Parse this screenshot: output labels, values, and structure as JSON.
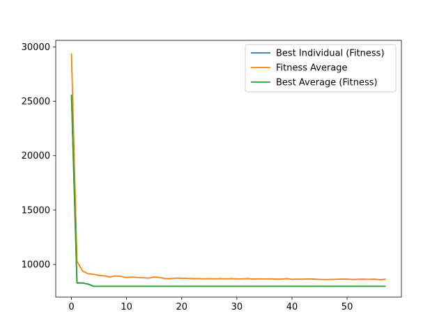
{
  "chart_data": {
    "type": "line",
    "title": "",
    "xlabel": "",
    "ylabel": "",
    "xlim": [
      -2.85,
      59.85
    ],
    "ylim": [
      7000,
      30600
    ],
    "xticks": [
      0,
      10,
      20,
      30,
      40,
      50
    ],
    "yticks": [
      10000,
      15000,
      20000,
      25000,
      30000
    ],
    "grid": false,
    "legend": "top-right",
    "series": [
      {
        "name": "Best Individual (Fitness)",
        "color": "#1f77b4",
        "x": [
          0,
          1,
          2,
          3,
          4,
          5,
          6,
          7,
          8,
          9,
          10,
          11,
          12,
          13,
          14,
          15,
          16,
          17,
          18,
          19,
          20,
          21,
          22,
          23,
          24,
          25,
          26,
          27,
          28,
          29,
          30,
          31,
          32,
          33,
          34,
          35,
          36,
          37,
          38,
          39,
          40,
          41,
          42,
          43,
          44,
          45,
          46,
          47,
          48,
          49,
          50,
          51,
          52,
          53,
          54,
          55,
          56,
          57
        ],
        "values": [
          25600,
          8300,
          8300,
          8200,
          8000,
          8000,
          8000,
          8000,
          8000,
          8000,
          8000,
          8000,
          8000,
          8000,
          8000,
          8000,
          8000,
          8000,
          8000,
          8000,
          8000,
          8000,
          8000,
          8000,
          8000,
          8000,
          8000,
          8000,
          8000,
          8000,
          8000,
          8000,
          8000,
          8000,
          8000,
          8000,
          8000,
          8000,
          8000,
          8000,
          8000,
          8000,
          8000,
          8000,
          8000,
          8000,
          8000,
          8000,
          8000,
          8000,
          8000,
          8000,
          8000,
          8000,
          8000,
          8000,
          8000,
          8000
        ]
      },
      {
        "name": "Fitness Average",
        "color": "#ff7f0e",
        "x": [
          0,
          1,
          2,
          3,
          4,
          5,
          6,
          7,
          8,
          9,
          10,
          11,
          12,
          13,
          14,
          15,
          16,
          17,
          18,
          19,
          20,
          21,
          22,
          23,
          24,
          25,
          26,
          27,
          28,
          29,
          30,
          31,
          32,
          33,
          34,
          35,
          36,
          37,
          38,
          39,
          40,
          41,
          42,
          43,
          44,
          45,
          46,
          47,
          48,
          49,
          50,
          51,
          52,
          53,
          54,
          55,
          56,
          57
        ],
        "values": [
          29400,
          10300,
          9400,
          9150,
          9100,
          9000,
          8950,
          8850,
          8950,
          8900,
          8800,
          8850,
          8800,
          8780,
          8750,
          8850,
          8800,
          8700,
          8700,
          8750,
          8730,
          8720,
          8700,
          8700,
          8680,
          8700,
          8680,
          8700,
          8680,
          8700,
          8670,
          8680,
          8700,
          8660,
          8680,
          8670,
          8680,
          8650,
          8650,
          8700,
          8640,
          8650,
          8650,
          8670,
          8660,
          8630,
          8620,
          8630,
          8640,
          8660,
          8660,
          8620,
          8640,
          8650,
          8640,
          8650,
          8600,
          8650
        ]
      },
      {
        "name": "Best Average (Fitness)",
        "color": "#2ca02c",
        "x": [
          0,
          1,
          2,
          3,
          4,
          5,
          6,
          7,
          8,
          9,
          10,
          11,
          12,
          13,
          14,
          15,
          16,
          17,
          18,
          19,
          20,
          21,
          22,
          23,
          24,
          25,
          26,
          27,
          28,
          29,
          30,
          31,
          32,
          33,
          34,
          35,
          36,
          37,
          38,
          39,
          40,
          41,
          42,
          43,
          44,
          45,
          46,
          47,
          48,
          49,
          50,
          51,
          52,
          53,
          54,
          55,
          56,
          57
        ],
        "values": [
          25600,
          8300,
          8300,
          8200,
          8000,
          8000,
          8000,
          8000,
          8000,
          8000,
          8000,
          8000,
          8000,
          8000,
          8000,
          8000,
          8000,
          8000,
          8000,
          8000,
          8000,
          8000,
          8000,
          8000,
          8000,
          8000,
          8000,
          8000,
          8000,
          8000,
          8000,
          8000,
          8000,
          8000,
          8000,
          8000,
          8000,
          8000,
          8000,
          8000,
          8000,
          8000,
          8000,
          8000,
          8000,
          8000,
          8000,
          8000,
          8000,
          8000,
          8000,
          8000,
          8000,
          8000,
          8000,
          8000,
          8000,
          8000
        ]
      }
    ]
  }
}
